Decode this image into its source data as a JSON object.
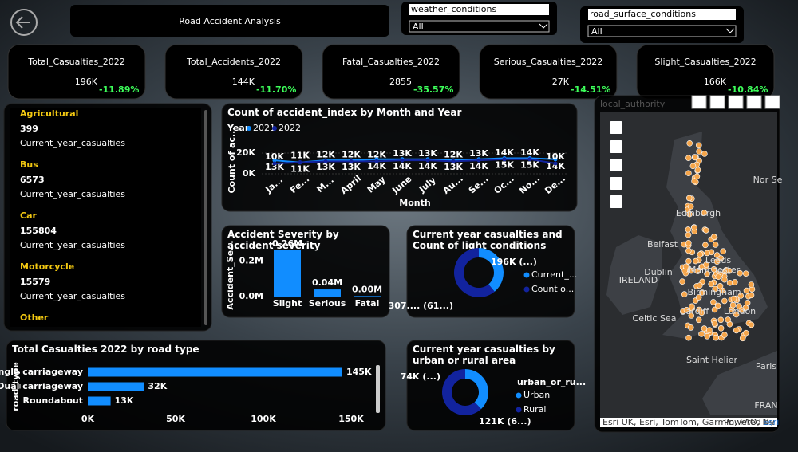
{
  "header": {
    "title": "Road Accident Analysis"
  },
  "slicers": [
    {
      "label": "weather_conditions",
      "value": "All"
    },
    {
      "label": "road_surface_conditions",
      "value": "All"
    }
  ],
  "kpis": [
    {
      "label": "Total_Casualties_2022",
      "value": "196K",
      "change": "-11.89%"
    },
    {
      "label": "Total_Accidents_2022",
      "value": "144K",
      "change": "-11.70%"
    },
    {
      "label": "Fatal_Casualties_2022",
      "value": "2855",
      "change": "-35.57%"
    },
    {
      "label": "Serious_Casualties_2022",
      "value": "27K",
      "change": "-14.51%"
    },
    {
      "label": "Slight_Casualties_2022",
      "value": "166K",
      "change": "-10.84%"
    }
  ],
  "vehicle_cards": [
    {
      "category": "Agricultural",
      "value": 399,
      "label": "Current_year_casualties"
    },
    {
      "category": "Bus",
      "value": 6573,
      "label": "Current_year_casualties"
    },
    {
      "category": "Car",
      "value": 155804,
      "label": "Current_year_casualties"
    },
    {
      "category": "Motorcycle",
      "value": 15579,
      "label": "Current_year_casualties"
    },
    {
      "category": "Other"
    }
  ],
  "map": {
    "title": "local_authority",
    "labels": [
      "Edinburgh",
      "Belfast",
      "Dublin",
      "IRELAND",
      "Leeds",
      "Manchester",
      "Birmingham",
      "Cardiff",
      "London",
      "Celtic Sea",
      "Saint Helier",
      "Paris",
      "Nor Se",
      "FRAN"
    ],
    "attribution": "Esri UK, Esri, TomTom, Garmin, FAO, N...",
    "powered_by": "Powered by",
    "powered_link": "Esri"
  },
  "chart_data": [
    {
      "type": "line",
      "title": "Count of accident_index by Month and Year",
      "legend_title": "Year",
      "x_label": "Month",
      "y_label": "Count of ac...",
      "categories": [
        "Ja...",
        "Fe...",
        "M...",
        "April",
        "May",
        "June",
        "July",
        "Au...",
        "Se...",
        "Oc...",
        "No...",
        "De..."
      ],
      "ylim": [
        0,
        25000
      ],
      "yticks": [
        {
          "value": 0,
          "label": "0K"
        },
        {
          "value": 20000,
          "label": "20K"
        }
      ],
      "series": [
        {
          "name": "2021",
          "color": "#118dff",
          "values": [
            13000,
            11000,
            13000,
            13000,
            14000,
            14000,
            14000,
            13000,
            14000,
            15000,
            15000,
            14000
          ],
          "value_labels": [
            "13K",
            "11K",
            "13K",
            "13K",
            "14K",
            "14K",
            "14K",
            "13K",
            "14K",
            "15K",
            "15K",
            "14K"
          ]
        },
        {
          "name": "2022",
          "color": "#12239e",
          "values": [
            10000,
            11000,
            12000,
            12000,
            12000,
            13000,
            13000,
            12000,
            13000,
            14000,
            14000,
            10000
          ],
          "value_labels": [
            "10K",
            "11K",
            "12K",
            "12K",
            "12K",
            "13K",
            "13K",
            "12K",
            "13K",
            "14K",
            "14K",
            "10K"
          ]
        }
      ]
    },
    {
      "type": "bar",
      "title": "Accident Severity by accident severity",
      "y_label": "Accident_Se...",
      "categories": [
        "Slight",
        "Serious",
        "Fatal"
      ],
      "values": [
        260000,
        40000,
        3000
      ],
      "value_labels": [
        "0.26M",
        "0.04M",
        "0.00M"
      ],
      "color": "#118dff",
      "ylim": [
        0,
        300000
      ],
      "yticks": [
        {
          "value": 0,
          "label": "0.0M"
        },
        {
          "value": 200000,
          "label": "0.2M"
        }
      ]
    },
    {
      "type": "donut",
      "title": "Current year casualties and Count of light conditions",
      "categories": [
        "Current_...",
        "Count o..."
      ],
      "values": [
        196000,
        307000
      ],
      "value_labels": [
        "196K (...)",
        "307.... (61...)"
      ],
      "colors": [
        "#118dff",
        "#12239e"
      ]
    },
    {
      "type": "barh",
      "title": "Total Casualties 2022 by road type",
      "y_label": "road_type",
      "categories": [
        "Single carriageway",
        "Dual carriageway",
        "Roundabout"
      ],
      "values": [
        145000,
        32000,
        13000
      ],
      "value_labels": [
        "145K",
        "32K",
        "13K"
      ],
      "color": "#118dff",
      "xlim": [
        0,
        150000
      ],
      "xticks": [
        {
          "value": 0,
          "label": "0K"
        },
        {
          "value": 50000,
          "label": "50K"
        },
        {
          "value": 100000,
          "label": "100K"
        },
        {
          "value": 150000,
          "label": "150K"
        }
      ]
    },
    {
      "type": "donut",
      "title": "Current year casualties by urban or rural area",
      "legend_title": "urban_or_ru...",
      "categories": [
        "Urban",
        "Rural"
      ],
      "values": [
        74000,
        121000
      ],
      "value_labels": [
        "74K (...)",
        "121K (6...)"
      ],
      "colors": [
        "#118dff",
        "#12239e"
      ]
    }
  ]
}
